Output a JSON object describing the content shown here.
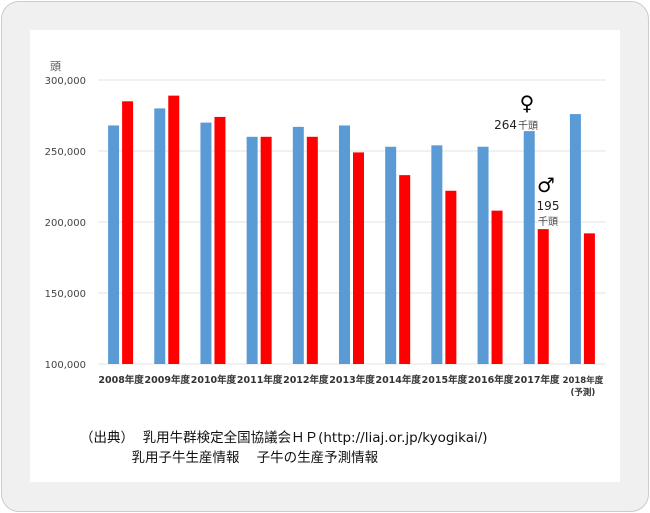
{
  "chart_data": {
    "type": "bar",
    "ylabel": "頭",
    "ylim": [
      100000,
      300000
    ],
    "yticks": [
      "100,000",
      "150,000",
      "200,000",
      "250,000",
      "300,000"
    ],
    "ytick_values": [
      100000,
      150000,
      200000,
      250000,
      300000
    ],
    "grid": true,
    "categories": [
      "2008年度",
      "2009年度",
      "2010年度",
      "2011年度",
      "2012年度",
      "2013年度",
      "2014年度",
      "2015年度",
      "2016年度",
      "2017年度",
      "2018年度"
    ],
    "last_category_note": "(予測)",
    "series": [
      {
        "name": "♀",
        "color": "#5b9bd5",
        "values": [
          268000,
          280000,
          270000,
          260000,
          267000,
          268000,
          253000,
          254000,
          253000,
          264000,
          276000
        ]
      },
      {
        "name": "♂",
        "color": "#ff0000",
        "values": [
          285000,
          289000,
          274000,
          260000,
          260000,
          249000,
          233000,
          222000,
          208000,
          195000,
          192000
        ]
      }
    ],
    "annotations": {
      "female_symbol": "♀",
      "female_value": "264",
      "female_unit": "千頭",
      "male_symbol": "♂",
      "male_value": "195",
      "male_unit": "千頭"
    }
  },
  "source": {
    "line1": "（出典）  乳用牛群検定全国協議会ＨＰ(http://liaj.or.jp/kyogikai/)",
    "line2": "            乳用子牛生産情報    子牛の生産予測情報"
  }
}
